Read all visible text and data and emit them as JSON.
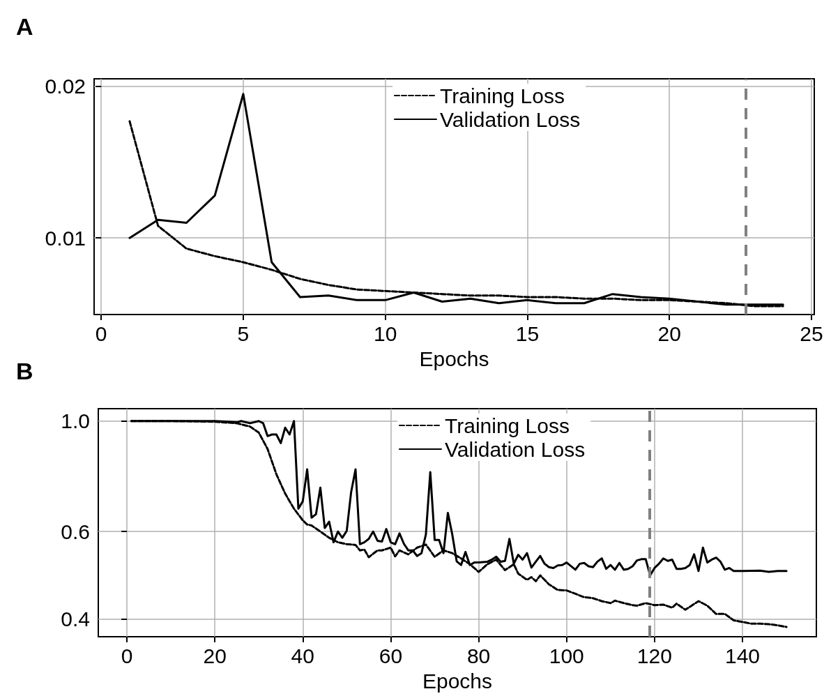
{
  "chart_data": [
    {
      "type": "line",
      "title": "A",
      "xlabel": "Epochs",
      "xlim": [
        -0.25,
        25.1
      ],
      "xticks": [
        0,
        5,
        10,
        15,
        20,
        25
      ],
      "ylim": [
        0.00495,
        0.0205
      ],
      "yticks": [
        0.01,
        0.02
      ],
      "grid": true,
      "legend": "top",
      "marker": "none",
      "ref_lines": [
        {
          "axis": "x",
          "value": 22.7,
          "color": "#808080",
          "line_style": "dashed"
        }
      ],
      "series": [
        {
          "name": "Training Loss",
          "color": "#000000",
          "line_style": "dashed",
          "x": [
            1,
            2,
            3,
            4,
            5,
            6,
            7,
            8,
            9,
            10,
            11,
            12,
            13,
            14,
            15,
            16,
            17,
            18,
            19,
            20,
            21,
            22,
            23,
            24
          ],
          "values": [
            0.0177,
            0.0108,
            0.0093,
            0.0088,
            0.0084,
            0.0079,
            0.0073,
            0.0069,
            0.0066,
            0.0065,
            0.0064,
            0.0063,
            0.0062,
            0.0062,
            0.0061,
            0.0061,
            0.006,
            0.006,
            0.0059,
            0.0059,
            0.0058,
            0.0057,
            0.0055,
            0.0055
          ]
        },
        {
          "name": "Validation Loss",
          "color": "#000000",
          "line_style": "solid",
          "x": [
            1,
            2,
            3,
            4,
            5,
            6,
            7,
            8,
            9,
            10,
            11,
            12,
            13,
            14,
            15,
            16,
            17,
            18,
            19,
            20,
            21,
            22,
            23,
            24
          ],
          "values": [
            0.01,
            0.0112,
            0.011,
            0.0128,
            0.0195,
            0.0084,
            0.0061,
            0.0062,
            0.0059,
            0.0059,
            0.0064,
            0.0058,
            0.006,
            0.0057,
            0.0059,
            0.0057,
            0.0057,
            0.0063,
            0.0061,
            0.006,
            0.0058,
            0.0056,
            0.0056,
            0.0056
          ]
        }
      ]
    },
    {
      "type": "line",
      "title": "B",
      "xlabel": "Epochs",
      "log": "y",
      "xlim": [
        -6.5,
        156.8
      ],
      "xticks": [
        0,
        20,
        40,
        60,
        80,
        100,
        120,
        140
      ],
      "ylim": [
        0.369,
        1.059
      ],
      "yticks": [
        0.4,
        0.6,
        {
          "value": 1,
          "label": "1.0"
        }
      ],
      "grid": true,
      "legend": "top",
      "marker": "none",
      "ref_lines": [
        {
          "axis": "x",
          "value": 118.8,
          "color": "#808080",
          "line_style": "dashed"
        }
      ],
      "series": [
        {
          "name": "Training Loss",
          "color": "#000000",
          "line_style": "dashed",
          "x": [
            1,
            10,
            20,
            25,
            28,
            30,
            32,
            34,
            36,
            38,
            40,
            41,
            42,
            44,
            46,
            48,
            50,
            52,
            53,
            54,
            55,
            57,
            58,
            60,
            61,
            62,
            64,
            66,
            68,
            70,
            72,
            74,
            76,
            78,
            80,
            82,
            84,
            86,
            88,
            89,
            91,
            92,
            93,
            94,
            96,
            98,
            100,
            102,
            104,
            106,
            108,
            110,
            111,
            113,
            115,
            116,
            118,
            120,
            122,
            124,
            125,
            127,
            130,
            132,
            134,
            136,
            138,
            140,
            142,
            144,
            146,
            148,
            150
          ],
          "values": [
            1.0,
            1.0,
            0.997,
            0.99,
            0.975,
            0.948,
            0.879,
            0.782,
            0.715,
            0.667,
            0.632,
            0.62,
            0.617,
            0.6,
            0.583,
            0.571,
            0.566,
            0.564,
            0.55,
            0.552,
            0.533,
            0.55,
            0.55,
            0.557,
            0.535,
            0.55,
            0.54,
            0.557,
            0.565,
            0.534,
            0.55,
            0.543,
            0.53,
            0.516,
            0.498,
            0.516,
            0.527,
            0.502,
            0.516,
            0.494,
            0.48,
            0.486,
            0.477,
            0.49,
            0.47,
            0.458,
            0.457,
            0.45,
            0.443,
            0.441,
            0.435,
            0.431,
            0.436,
            0.431,
            0.427,
            0.426,
            0.431,
            0.427,
            0.428,
            0.422,
            0.43,
            0.418,
            0.435,
            0.426,
            0.41,
            0.41,
            0.398,
            0.395,
            0.392,
            0.392,
            0.391,
            0.389,
            0.386
          ]
        },
        {
          "name": "Validation Loss",
          "color": "#000000",
          "line_style": "solid",
          "x": [
            1,
            10,
            20,
            25,
            26,
            28,
            30,
            31,
            32,
            33,
            34,
            35,
            36,
            37,
            38,
            39,
            40,
            41,
            42,
            43,
            44,
            45,
            46,
            47,
            48,
            49,
            50,
            51,
            52,
            53,
            54,
            55,
            56,
            57,
            58,
            59,
            60,
            61,
            62,
            63,
            64,
            65,
            66,
            67,
            68,
            69,
            70,
            71,
            72,
            73,
            74,
            75,
            76,
            77,
            78,
            79,
            80,
            82,
            83,
            84,
            85,
            86,
            87,
            88,
            89,
            90,
            91,
            92,
            93,
            94,
            95,
            96,
            97,
            98,
            99,
            100,
            102,
            103,
            104,
            105,
            106,
            107,
            108,
            109,
            110,
            111,
            112,
            113,
            114,
            115,
            116,
            117,
            118,
            119,
            120,
            121,
            122,
            123,
            124,
            125,
            126,
            127,
            128,
            129,
            130,
            131,
            132,
            133,
            134,
            135,
            136,
            137,
            138,
            140,
            144,
            146,
            148,
            150
          ],
          "values": [
            1.0,
            1.0,
            1.0,
            0.995,
            1.0,
            0.99,
            1.0,
            0.99,
            0.933,
            0.94,
            0.94,
            0.903,
            0.97,
            0.94,
            1.0,
            0.667,
            0.69,
            0.8,
            0.64,
            0.65,
            0.735,
            0.61,
            0.628,
            0.571,
            0.6,
            0.583,
            0.602,
            0.72,
            0.8,
            0.566,
            0.571,
            0.58,
            0.6,
            0.575,
            0.573,
            0.607,
            0.571,
            0.566,
            0.595,
            0.567,
            0.55,
            0.55,
            0.536,
            0.543,
            0.592,
            0.79,
            0.577,
            0.577,
            0.543,
            0.654,
            0.592,
            0.523,
            0.514,
            0.546,
            0.514,
            0.52,
            0.52,
            0.522,
            0.527,
            0.534,
            0.522,
            0.524,
            0.58,
            0.517,
            0.539,
            0.527,
            0.543,
            0.508,
            0.522,
            0.536,
            0.517,
            0.509,
            0.507,
            0.513,
            0.514,
            0.52,
            0.503,
            0.517,
            0.519,
            0.511,
            0.509,
            0.522,
            0.53,
            0.505,
            0.514,
            0.503,
            0.519,
            0.503,
            0.505,
            0.511,
            0.525,
            0.528,
            0.528,
            0.49,
            0.507,
            0.517,
            0.53,
            0.524,
            0.527,
            0.505,
            0.505,
            0.507,
            0.514,
            0.54,
            0.5,
            0.557,
            0.52,
            0.527,
            0.532,
            0.522,
            0.503,
            0.507,
            0.5,
            0.5,
            0.501,
            0.498,
            0.5,
            0.5
          ]
        }
      ]
    }
  ]
}
